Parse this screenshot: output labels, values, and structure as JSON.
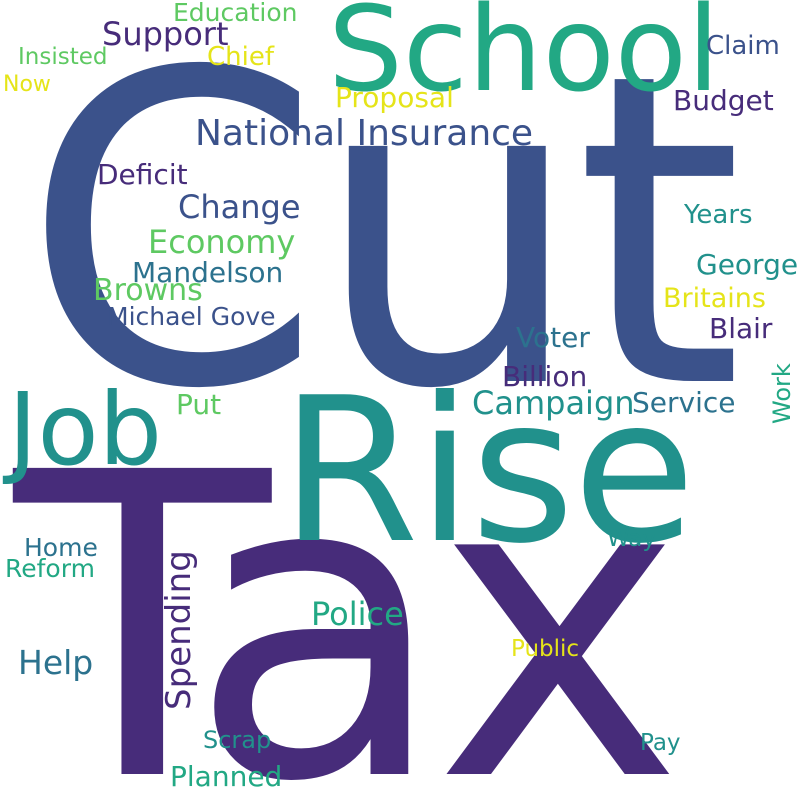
{
  "words": [
    {
      "text": "Cut",
      "color": "#3b528b"
    },
    {
      "text": "Tax",
      "color": "#472c7a"
    },
    {
      "text": "Rise",
      "color": "#21918c"
    },
    {
      "text": "School",
      "color": "#22a884"
    },
    {
      "text": "Job",
      "color": "#21918c"
    },
    {
      "text": "National Insurance",
      "color": "#3b528b"
    },
    {
      "text": "Support",
      "color": "#472c7a"
    },
    {
      "text": "Education",
      "color": "#5ec962"
    },
    {
      "text": "Insisted",
      "color": "#5ec962"
    },
    {
      "text": "Chief",
      "color": "#e5e419"
    },
    {
      "text": "Now",
      "color": "#e5e419"
    },
    {
      "text": "Claim",
      "color": "#3b528b"
    },
    {
      "text": "Proposal",
      "color": "#e5e419"
    },
    {
      "text": "Budget",
      "color": "#472c7a"
    },
    {
      "text": "Deficit",
      "color": "#472c7a"
    },
    {
      "text": "Change",
      "color": "#3b528b"
    },
    {
      "text": "Economy",
      "color": "#5ec962"
    },
    {
      "text": "Years",
      "color": "#21918c"
    },
    {
      "text": "Mandelson",
      "color": "#2c728e"
    },
    {
      "text": "George",
      "color": "#21918c"
    },
    {
      "text": "Browns",
      "color": "#5ec962"
    },
    {
      "text": "Britains",
      "color": "#e5e419"
    },
    {
      "text": "Michael Gove",
      "color": "#3b528b"
    },
    {
      "text": "Blair",
      "color": "#472c7a"
    },
    {
      "text": "Voter",
      "color": "#2c728e"
    },
    {
      "text": "Billion",
      "color": "#472c7a"
    },
    {
      "text": "Work",
      "color": "#22a884"
    },
    {
      "text": "Put",
      "color": "#5ec962"
    },
    {
      "text": "Campaign",
      "color": "#21918c"
    },
    {
      "text": "Service",
      "color": "#2c728e"
    },
    {
      "text": "Home",
      "color": "#2c728e"
    },
    {
      "text": "Reform",
      "color": "#22a884"
    },
    {
      "text": "Spending",
      "color": "#472c7a"
    },
    {
      "text": "Way",
      "color": "#21918c"
    },
    {
      "text": "Police",
      "color": "#22a884"
    },
    {
      "text": "Help",
      "color": "#2c728e"
    },
    {
      "text": "Public",
      "color": "#e5e419"
    },
    {
      "text": "Scrap",
      "color": "#21918c"
    },
    {
      "text": "Pay",
      "color": "#21918c"
    },
    {
      "text": "Planned",
      "color": "#22a884"
    }
  ]
}
